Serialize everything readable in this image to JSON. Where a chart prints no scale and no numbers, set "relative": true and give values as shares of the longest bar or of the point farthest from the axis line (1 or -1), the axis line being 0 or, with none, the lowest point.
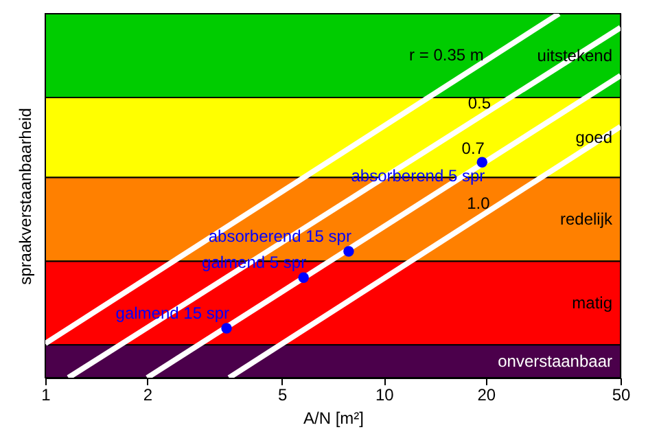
{
  "chart_data": {
    "type": "scatter",
    "relative": true,
    "xlabel": "A/N [m²]",
    "ylabel": "spraakverstaanbaarheid",
    "log": "x",
    "xlim": [
      1,
      50
    ],
    "xticks": [
      1,
      2,
      5,
      10,
      20,
      50
    ],
    "tick_labels": "x",
    "marker": "circle",
    "bands": [
      {
        "axis": "y",
        "from": 0.77,
        "to": 1,
        "label": "uitstekend",
        "color": "#00cc00"
      },
      {
        "axis": "y",
        "from": 0.55,
        "to": 0.77,
        "label": "goed",
        "color": "#ffff00"
      },
      {
        "axis": "y",
        "from": 0.32,
        "to": 0.55,
        "label": "redelijk",
        "color": "#ff8000"
      },
      {
        "axis": "y",
        "from": 0.09,
        "to": 0.32,
        "label": "matig",
        "color": "#ff0000"
      },
      {
        "axis": "y",
        "from": 0,
        "to": 0.09,
        "label": "onverstaanbaar",
        "color": "#4b004b"
      }
    ],
    "series": [
      {
        "type": "line",
        "marker": "none",
        "line_style": "solid",
        "color": "#ffffff",
        "x": [
          1,
          32.9
        ],
        "values": [
          0.094,
          1
        ]
      },
      {
        "type": "line",
        "marker": "none",
        "line_style": "solid",
        "color": "#ffffff",
        "x": [
          1.17,
          50
        ],
        "values": [
          0,
          0.962
        ]
      },
      {
        "type": "line",
        "marker": "none",
        "line_style": "solid",
        "color": "#ffffff",
        "x": [
          2.0,
          50
        ],
        "values": [
          0,
          0.83
        ]
      },
      {
        "type": "line",
        "marker": "none",
        "line_style": "solid",
        "color": "#ffffff",
        "x": [
          3.49,
          50
        ],
        "values": [
          0,
          0.69
        ]
      },
      {
        "name": "galmend 15 spr",
        "color": "#0000ff",
        "x": [
          3.43
        ],
        "values": [
          0.136
        ]
      },
      {
        "name": "galmend 5 spr",
        "color": "#0000ff",
        "x": [
          5.79
        ],
        "values": [
          0.275
        ]
      },
      {
        "name": "absorberend 15 spr",
        "color": "#0000ff",
        "x": [
          7.87
        ],
        "values": [
          0.347
        ]
      },
      {
        "name": "absorberend 5 spr",
        "color": "#0000ff",
        "x": [
          19.5
        ],
        "values": [
          0.592
        ]
      }
    ],
    "annotations": [
      "r = 0.35 m",
      "0.5",
      "0.7",
      "1.0"
    ]
  }
}
